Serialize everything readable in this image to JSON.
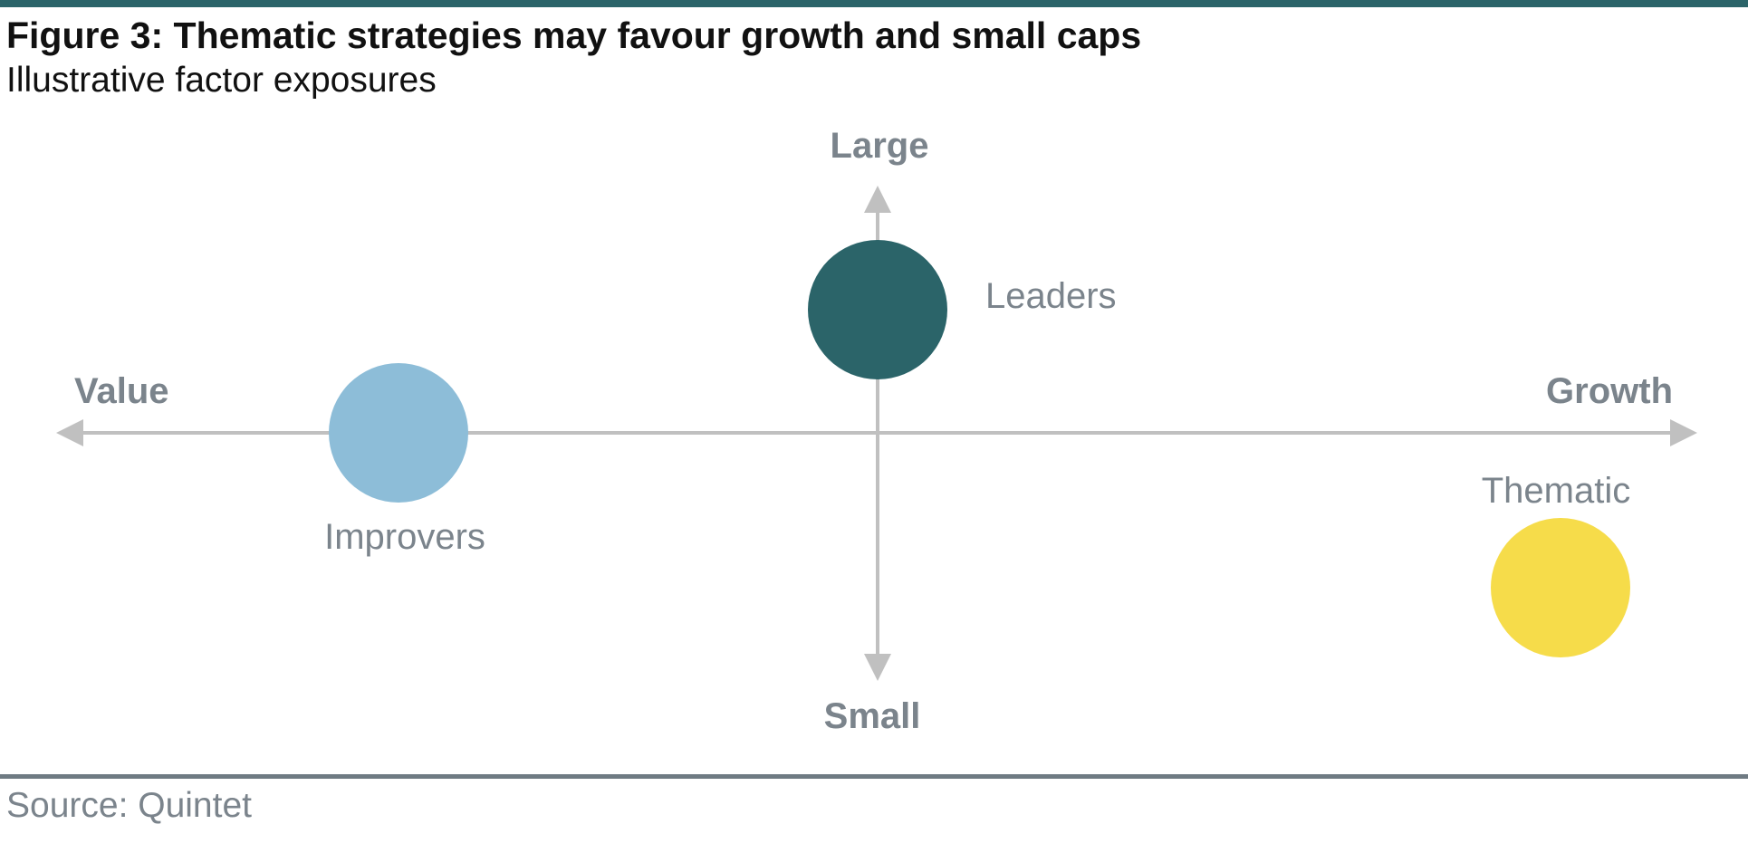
{
  "figure": {
    "title": "Figure 3: Thematic strategies may favour growth and small caps",
    "subtitle": "Illustrative factor exposures",
    "source": "Source: Quintet"
  },
  "axes": {
    "horizontal": {
      "negative_label": "Value",
      "positive_label": "Growth"
    },
    "vertical": {
      "positive_label": "Large",
      "negative_label": "Small"
    },
    "color": "#c0c0c0"
  },
  "points": [
    {
      "name": "Leaders",
      "color": "#2b6469"
    },
    {
      "name": "Improvers",
      "color": "#8dbdd8"
    },
    {
      "name": "Thematic",
      "color": "#f6dc4a"
    }
  ],
  "colors": {
    "accent": "#2b6469",
    "label_text": "#7b848c",
    "rule": "#6f7b83"
  }
}
